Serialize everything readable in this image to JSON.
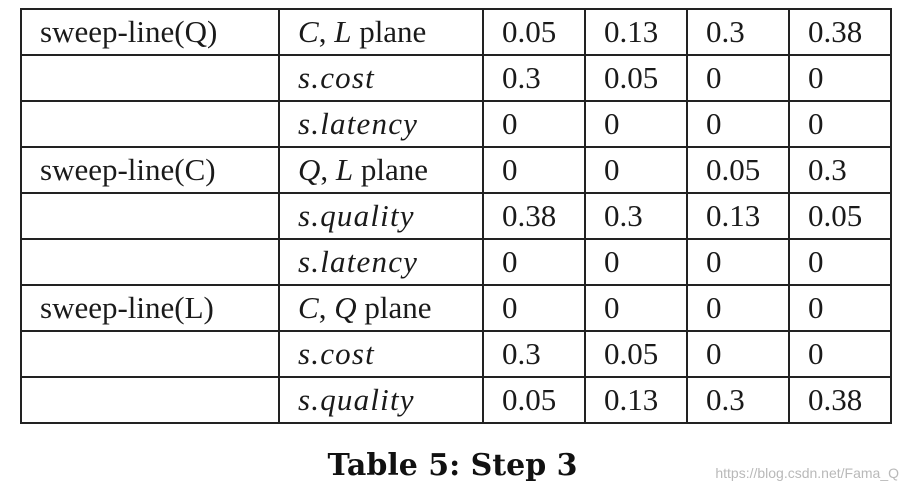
{
  "table": {
    "rows": [
      {
        "method": "sweep-line(Q)",
        "var_a": "C",
        "sep": ", ",
        "var_b": "L",
        "plane_word": " plane",
        "cells": [
          "0.05",
          "0.13",
          "0.3",
          "0.38"
        ]
      },
      {
        "method": "",
        "label": "s.cost",
        "cells": [
          "0.3",
          "0.05",
          "0",
          "0"
        ]
      },
      {
        "method": "",
        "label": "s.latency",
        "cells": [
          "0",
          "0",
          "0",
          "0"
        ]
      },
      {
        "method": "sweep-line(C)",
        "var_a": "Q",
        "sep": ", ",
        "var_b": "L",
        "plane_word": " plane",
        "cells": [
          "0",
          "0",
          "0.05",
          "0.3"
        ]
      },
      {
        "method": "",
        "label": "s.quality",
        "cells": [
          "0.38",
          "0.3",
          "0.13",
          "0.05"
        ]
      },
      {
        "method": "",
        "label": "s.latency",
        "cells": [
          "0",
          "0",
          "0",
          "0"
        ]
      },
      {
        "method": "sweep-line(L)",
        "var_a": "C",
        "sep": ", ",
        "var_b": "Q",
        "plane_word": " plane",
        "cells": [
          "0",
          "0",
          "0",
          "0"
        ]
      },
      {
        "method": "",
        "label": "s.cost",
        "cells": [
          "0.3",
          "0.05",
          "0",
          "0"
        ]
      },
      {
        "method": "",
        "label": "s.quality",
        "cells": [
          "0.05",
          "0.13",
          "0.3",
          "0.38"
        ]
      }
    ]
  },
  "caption": "Table 5: Step 3",
  "watermark": "https://blog.csdn.net/Fama_Q"
}
